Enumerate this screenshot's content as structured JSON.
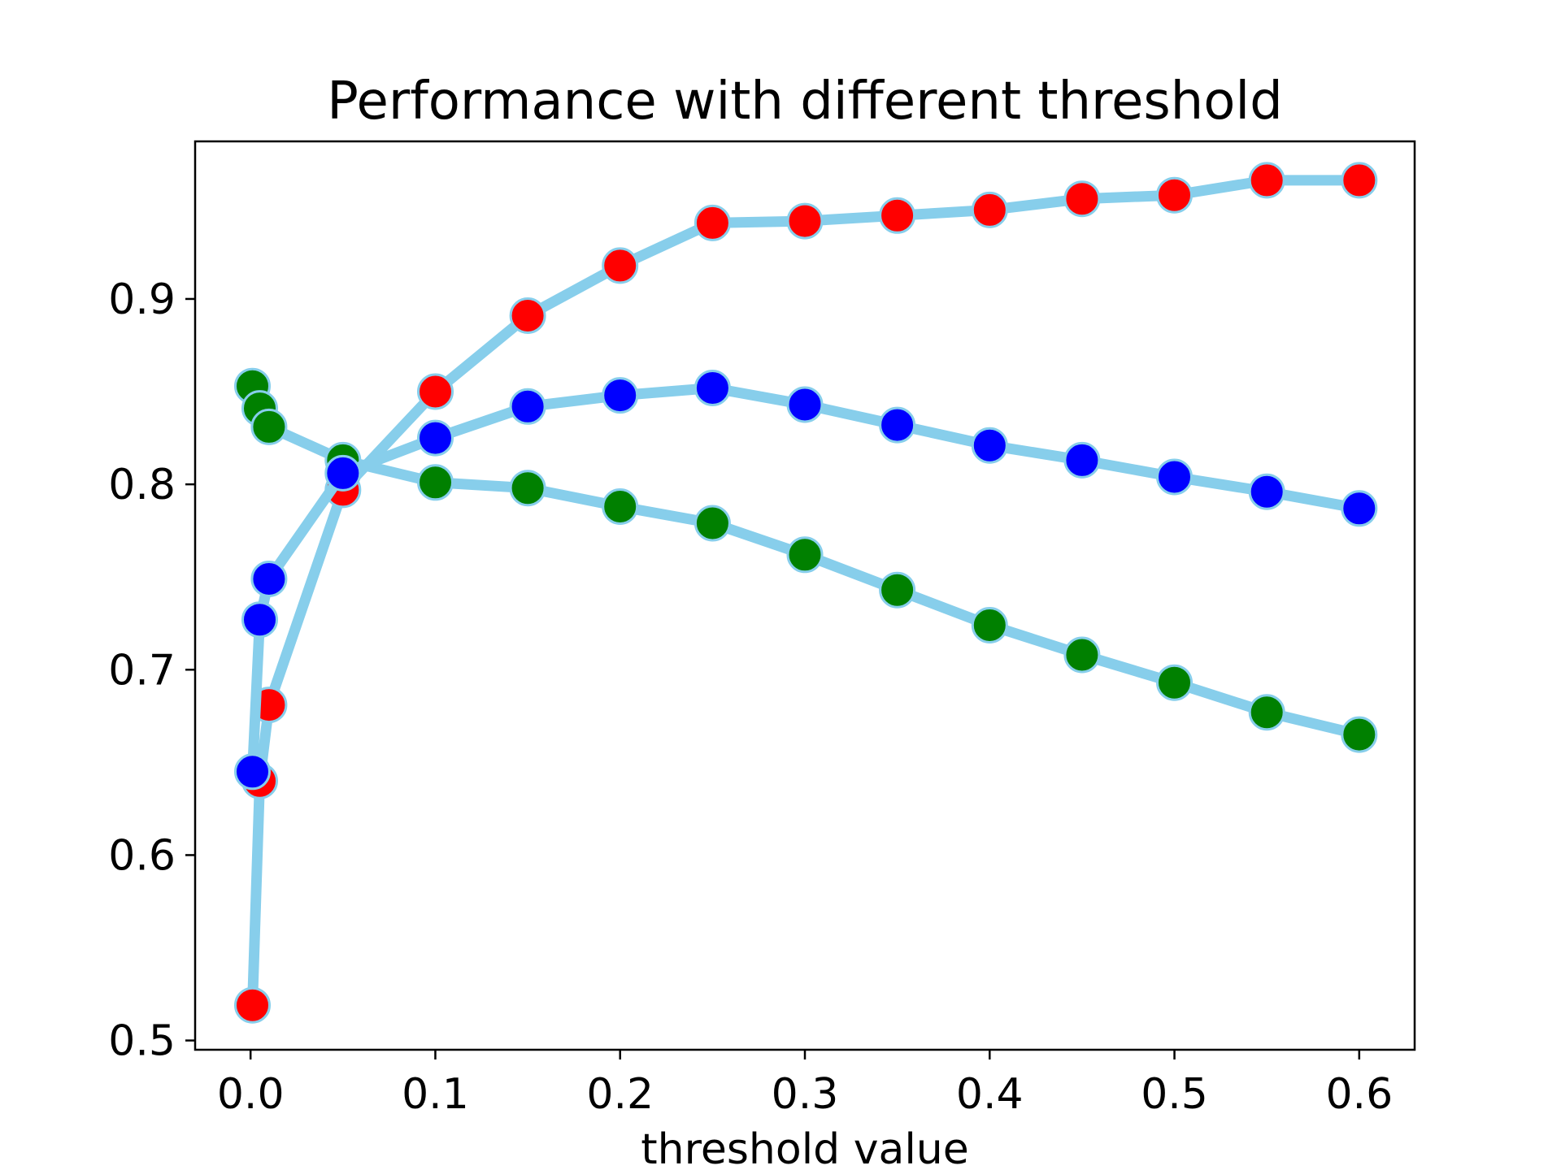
{
  "chart_data": {
    "type": "line",
    "title": "Performance with different threshold",
    "xlabel": "threshold value",
    "ylabel": "",
    "xlim": [
      -0.03,
      0.63
    ],
    "ylim": [
      0.495,
      0.985
    ],
    "xticks": [
      0.0,
      0.1,
      0.2,
      0.3,
      0.4,
      0.5,
      0.6
    ],
    "xtick_labels": [
      "0.0",
      "0.1",
      "0.2",
      "0.3",
      "0.4",
      "0.5",
      "0.6"
    ],
    "yticks": [
      0.5,
      0.6,
      0.7,
      0.8,
      0.9
    ],
    "ytick_labels": [
      "0.5",
      "0.6",
      "0.7",
      "0.8",
      "0.9"
    ],
    "grid": false,
    "legend": "none",
    "line_color": "#87ceeb",
    "x": [
      0.001,
      0.005,
      0.01,
      0.05,
      0.1,
      0.15,
      0.2,
      0.25,
      0.3,
      0.35,
      0.4,
      0.45,
      0.5,
      0.55,
      0.6
    ],
    "series": [
      {
        "color": "#ff0000",
        "values": [
          0.519,
          0.64,
          0.681,
          0.797,
          0.85,
          0.891,
          0.918,
          0.941,
          0.942,
          0.945,
          0.948,
          0.954,
          0.956,
          0.964,
          0.964
        ]
      },
      {
        "color": "#008000",
        "values": [
          0.853,
          0.841,
          0.831,
          0.813,
          0.801,
          0.798,
          0.788,
          0.779,
          0.762,
          0.743,
          0.724,
          0.708,
          0.693,
          0.677,
          0.665
        ]
      },
      {
        "color": "#0000ff",
        "values": [
          0.645,
          0.727,
          0.749,
          0.806,
          0.825,
          0.842,
          0.848,
          0.852,
          0.843,
          0.832,
          0.821,
          0.813,
          0.804,
          0.796,
          0.787
        ]
      }
    ]
  }
}
